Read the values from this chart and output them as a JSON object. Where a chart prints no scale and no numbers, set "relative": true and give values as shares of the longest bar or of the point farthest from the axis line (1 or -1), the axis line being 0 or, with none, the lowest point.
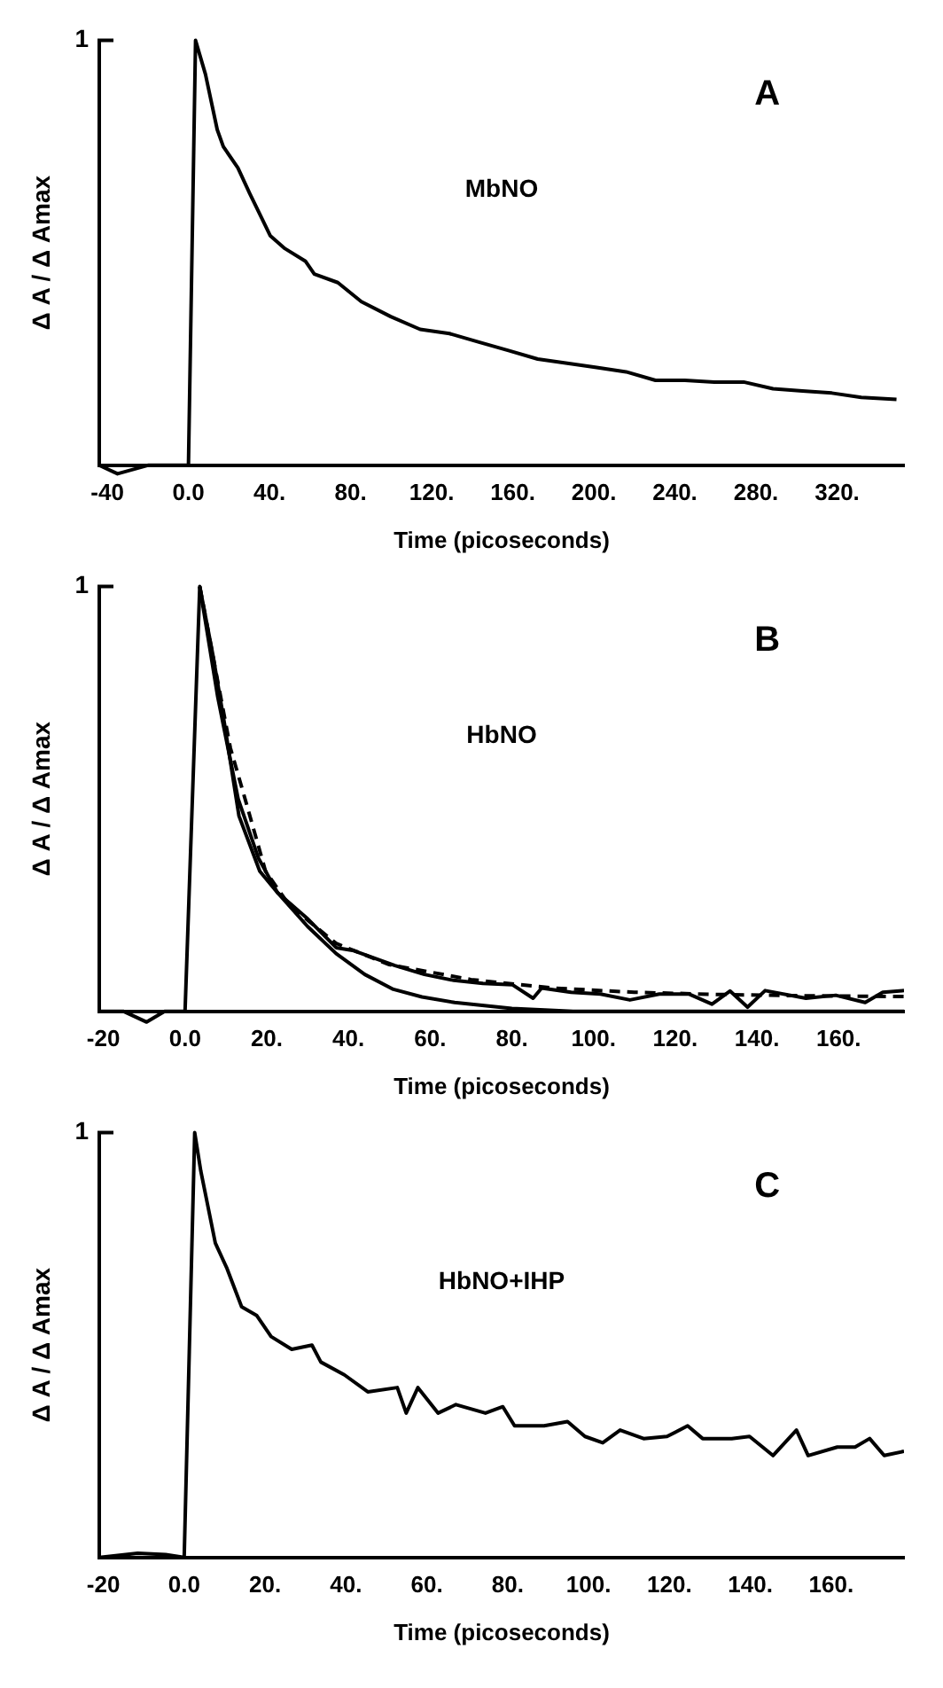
{
  "chart_data": [
    {
      "type": "line",
      "relative": true,
      "xlabel": "Time (picoseconds)",
      "ylabel": "Δ A / Δ Amax",
      "annotations": [
        "1",
        "A",
        "MbNO"
      ],
      "xlim": [
        -44,
        353
      ],
      "xticks": [
        {
          "value": -40,
          "label": "-40"
        },
        {
          "value": 0,
          "label": "0.0"
        },
        {
          "value": 40,
          "label": "40."
        },
        {
          "value": 80,
          "label": "80."
        },
        {
          "value": 120,
          "label": "120."
        },
        {
          "value": 160,
          "label": "160."
        },
        {
          "value": 200,
          "label": "200."
        },
        {
          "value": 240,
          "label": "240."
        },
        {
          "value": 280,
          "label": "280."
        },
        {
          "value": 320,
          "label": "320."
        }
      ],
      "grid": false,
      "legend": false,
      "marker": "none",
      "series": [
        {
          "color": "#000000",
          "line_style": "solid",
          "x": [
            -44,
            -35,
            -20,
            -5,
            0,
            3.5,
            8.4,
            14.2,
            17.2,
            24.4,
            30.2,
            40.4,
            47.6,
            57.8,
            62.1,
            73.7,
            85.3,
            99.8,
            114.3,
            128.8,
            143.3,
            157.9,
            172.3,
            186.9,
            201.4,
            215.9,
            230.4,
            244.9,
            259.4,
            273.9,
            288.4,
            302.9,
            317.4,
            331.9,
            349.3
          ],
          "values": [
            0,
            -0.02,
            0,
            0,
            0,
            1,
            0.92,
            0.79,
            0.75,
            0.7,
            0.64,
            0.54,
            0.51,
            0.48,
            0.45,
            0.43,
            0.385,
            0.35,
            0.32,
            0.31,
            0.29,
            0.27,
            0.25,
            0.24,
            0.23,
            0.22,
            0.2,
            0.2,
            0.196,
            0.196,
            0.18,
            0.175,
            0.17,
            0.16,
            0.155
          ]
        }
      ]
    },
    {
      "type": "line",
      "relative": true,
      "xlabel": "Time (picoseconds)",
      "ylabel": "Δ A / Δ Amax",
      "annotations": [
        "1",
        "B",
        "HbNO"
      ],
      "xlim": [
        -21,
        176
      ],
      "xticks": [
        {
          "value": -20,
          "label": "-20"
        },
        {
          "value": 0,
          "label": "0.0"
        },
        {
          "value": 20,
          "label": "20."
        },
        {
          "value": 40,
          "label": "40."
        },
        {
          "value": 60,
          "label": "60."
        },
        {
          "value": 80,
          "label": "80."
        },
        {
          "value": 100,
          "label": "100."
        },
        {
          "value": 120,
          "label": "120."
        },
        {
          "value": 140,
          "label": "140."
        },
        {
          "value": 160,
          "label": "160."
        }
      ],
      "grid": false,
      "legend": false,
      "marker": "none",
      "series": [
        {
          "color": "#000000",
          "line_style": "solid",
          "x": [
            -21,
            -15,
            -9.4,
            -5,
            0,
            3.6,
            6.8,
            9.6,
            13.2,
            18.3,
            22.6,
            29.8,
            37,
            41.3,
            51.4,
            58.6,
            65.8,
            72.9,
            80.1,
            85.2,
            87.3,
            94.5,
            101.7,
            108.9,
            116.1,
            123.3,
            129,
            133.4,
            137.7,
            142,
            152,
            159.3,
            166.5,
            170.8,
            176
          ],
          "values": [
            0,
            0,
            -0.025,
            0,
            0,
            1,
            0.84,
            0.68,
            0.46,
            0.33,
            0.28,
            0.22,
            0.15,
            0.143,
            0.108,
            0.087,
            0.073,
            0.066,
            0.063,
            0.031,
            0.055,
            0.045,
            0.041,
            0.027,
            0.041,
            0.041,
            0.017,
            0.048,
            0.01,
            0.049,
            0.031,
            0.038,
            0.021,
            0.045,
            0.049
          ]
        },
        {
          "color": "#000000",
          "line_style": "solid",
          "x": [
            3.6,
            8,
            13,
            18,
            22.6,
            30,
            37,
            44,
            51,
            58,
            66,
            80,
            95,
            176
          ],
          "values": [
            1,
            0.74,
            0.5,
            0.36,
            0.28,
            0.2,
            0.136,
            0.087,
            0.052,
            0.034,
            0.021,
            0.007,
            0,
            0
          ]
        },
        {
          "color": "#000000",
          "line_style": "dashed",
          "x": [
            3.6,
            11.1,
            14.7,
            19.7,
            25.5,
            37,
            50,
            70,
            90,
            110,
            130,
            150,
            176
          ],
          "values": [
            1,
            0.62,
            0.5,
            0.33,
            0.25,
            0.16,
            0.11,
            0.075,
            0.055,
            0.045,
            0.04,
            0.037,
            0.035
          ]
        }
      ]
    },
    {
      "type": "line",
      "relative": true,
      "xlabel": "Time (picoseconds)",
      "ylabel": "Δ A / Δ Amax",
      "annotations": [
        "1",
        "C",
        "HbNO+IHP"
      ],
      "xlim": [
        -21,
        178
      ],
      "xticks": [
        {
          "value": -20,
          "label": "-20"
        },
        {
          "value": 0,
          "label": "0.0"
        },
        {
          "value": 20,
          "label": "20."
        },
        {
          "value": 40,
          "label": "40."
        },
        {
          "value": 60,
          "label": "60."
        },
        {
          "value": 80,
          "label": "80."
        },
        {
          "value": 100,
          "label": "100."
        },
        {
          "value": 120,
          "label": "120."
        },
        {
          "value": 140,
          "label": "140."
        },
        {
          "value": 160,
          "label": "160."
        }
      ],
      "grid": false,
      "legend": false,
      "marker": "none",
      "series": [
        {
          "color": "#000000",
          "line_style": "solid",
          "x": [
            -21,
            -11.5,
            -4.6,
            0,
            2.6,
            4.1,
            7.7,
            10.6,
            14.2,
            17.9,
            21.5,
            26.6,
            31.6,
            33.8,
            39.6,
            45.4,
            52.7,
            54.9,
            57.8,
            62.8,
            67.2,
            74.5,
            78.8,
            81.7,
            89,
            94.8,
            99.1,
            103.5,
            107.8,
            113.6,
            119.4,
            124.5,
            128.2,
            135.4,
            139.8,
            145.6,
            151.4,
            154.3,
            161.5,
            165.9,
            169.5,
            173.1,
            178
          ],
          "values": [
            0,
            0.01,
            0.007,
            0,
            1,
            0.91,
            0.74,
            0.68,
            0.59,
            0.57,
            0.52,
            0.49,
            0.5,
            0.46,
            0.43,
            0.39,
            0.4,
            0.34,
            0.4,
            0.34,
            0.36,
            0.34,
            0.355,
            0.31,
            0.31,
            0.32,
            0.285,
            0.27,
            0.3,
            0.28,
            0.285,
            0.31,
            0.28,
            0.28,
            0.285,
            0.24,
            0.3,
            0.24,
            0.26,
            0.26,
            0.28,
            0.24,
            0.25
          ]
        }
      ]
    }
  ]
}
